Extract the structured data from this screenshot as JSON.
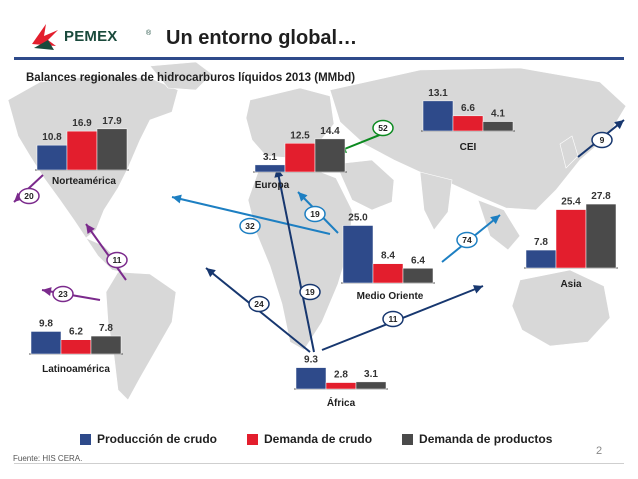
{
  "header": {
    "logo_text": "PEMEX",
    "logo_reg": "®",
    "title": "Un entorno global…"
  },
  "subtitle": "Balances regionales de hidrocarburos líquidos 2013 (MMbd)",
  "legend": [
    {
      "label": "Producción de crudo",
      "color": "#2e4a8a"
    },
    {
      "label": "Demanda de crudo",
      "color": "#e31e2d"
    },
    {
      "label": "Demanda de productos",
      "color": "#4a4a4a"
    }
  ],
  "footer": {
    "source": "Fuente: HIS CERA.",
    "page_number": "2"
  },
  "colors": {
    "accent_blue": "#2e4a8a",
    "arrow_blue": "#1d7fc2",
    "arrow_green": "#0c8a20",
    "arrow_purple": "#7b2a8c",
    "arrow_navy": "#17376f",
    "map_gray": "#d8d8d8"
  },
  "chart_data": {
    "type": "bar",
    "series_names": [
      "Producción de crudo",
      "Demanda de crudo",
      "Demanda de productos"
    ],
    "regions": [
      {
        "name": "Norteamérica",
        "values": [
          10.8,
          16.9,
          17.9
        ]
      },
      {
        "name": "Europa",
        "values": [
          3.1,
          12.5,
          14.4
        ]
      },
      {
        "name": "CEI",
        "values": [
          13.1,
          6.6,
          4.1
        ]
      },
      {
        "name": "Asia",
        "values": [
          7.8,
          25.4,
          27.8
        ]
      },
      {
        "name": "Medio Oriente",
        "values": [
          25.0,
          8.4,
          6.4
        ]
      },
      {
        "name": "Latinoamérica",
        "values": [
          9.8,
          6.2,
          7.8
        ]
      },
      {
        "name": "África",
        "values": [
          9.3,
          2.8,
          3.1
        ]
      }
    ],
    "flows": [
      {
        "label": "52",
        "from": "CEI",
        "to": "Europa",
        "color": "green"
      },
      {
        "label": "9",
        "from": "CEI",
        "to": "Asia",
        "color": "navy"
      },
      {
        "label": "20",
        "from": "Norteamérica",
        "to": "west",
        "color": "purple"
      },
      {
        "label": "11",
        "from": "Latinoamérica",
        "to": "Norteamérica",
        "color": "purple"
      },
      {
        "label": "23",
        "from": "Latinoamérica",
        "to": "west",
        "color": "purple"
      },
      {
        "label": "32",
        "from": "Medio Oriente",
        "to": "Norteamérica",
        "color": "blue"
      },
      {
        "label": "19",
        "from": "Medio Oriente",
        "to": "Europa",
        "color": "blue"
      },
      {
        "label": "74",
        "from": "Medio Oriente",
        "to": "Asia",
        "color": "blue"
      },
      {
        "label": "24",
        "from": "África",
        "to": "Norteamérica",
        "color": "navy"
      },
      {
        "label": "19",
        "from": "África",
        "to": "Europa",
        "color": "navy"
      },
      {
        "label": "11",
        "from": "África",
        "to": "Asia",
        "color": "navy"
      }
    ]
  }
}
